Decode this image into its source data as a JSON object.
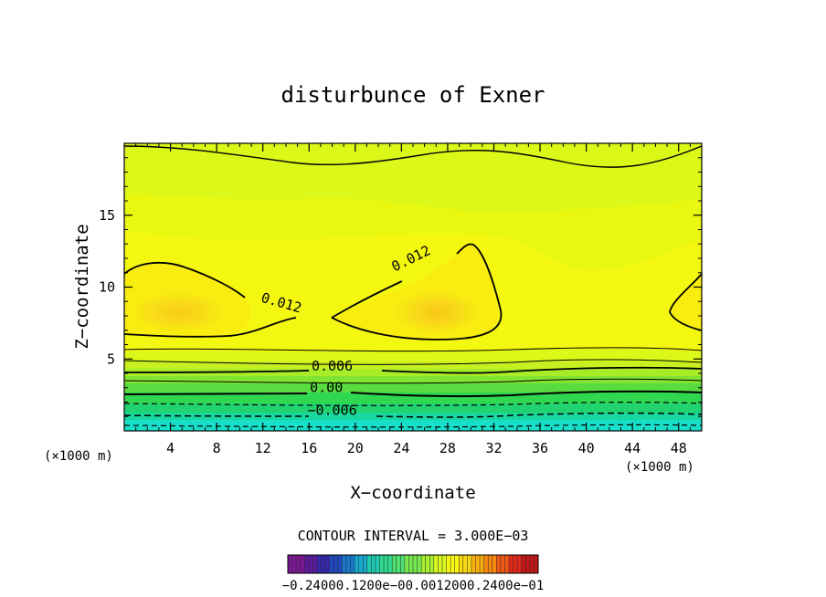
{
  "chart_data": {
    "type": "contour",
    "title": "disturbunce of Exner",
    "xlabel": "X−coordinate",
    "ylabel": "Z−coordinate",
    "x_unit_left": "(×1000 m)",
    "x_unit_right": "(×1000 m)",
    "xlim": [
      0,
      50
    ],
    "ylim": [
      0,
      20
    ],
    "x_ticks": [
      4,
      8,
      12,
      16,
      20,
      24,
      28,
      32,
      36,
      40,
      44,
      48
    ],
    "y_ticks": [
      5,
      10,
      15
    ],
    "contour_interval_text": "CONTOUR INTERVAL = 3.000E−03",
    "contour_labels": [
      {
        "text": "0.012",
        "x": 13.5,
        "z": 8.6,
        "rot": 16
      },
      {
        "text": "0.012",
        "x": 25.0,
        "z": 11.7,
        "rot": -26
      },
      {
        "text": "0.006",
        "x": 18.0,
        "z": 4.2,
        "rot": 0
      },
      {
        "text": "0.00",
        "x": 17.5,
        "z": 2.7,
        "rot": 0
      },
      {
        "text": "−0.006",
        "x": 18.0,
        "z": 1.1,
        "rot": 0
      }
    ],
    "colorbar": {
      "labels_text": "−0.24000.1200e−00.0012000.2400e−01",
      "colors": [
        "#7a1890",
        "#5a1a9a",
        "#3428a8",
        "#2048bc",
        "#1a78c8",
        "#18a8cc",
        "#20c8b0",
        "#30d890",
        "#50e070",
        "#78e850",
        "#a8f030",
        "#d8f820",
        "#f8f810",
        "#f8d810",
        "#f8b010",
        "#f88810",
        "#f05818",
        "#e02818",
        "#c01818"
      ]
    }
  }
}
